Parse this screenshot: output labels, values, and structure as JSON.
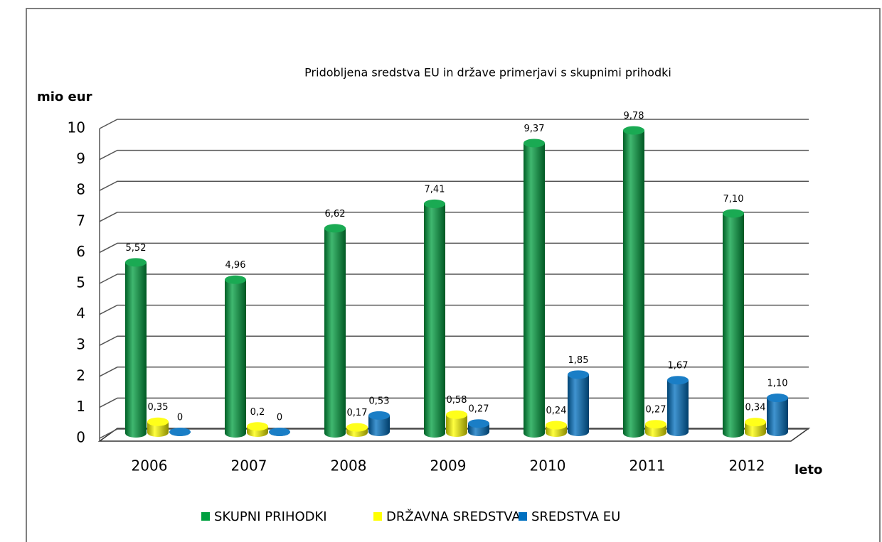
{
  "chart_data": {
    "type": "bar3d",
    "title": "Pridobljena sredstva EU in države  primerjavi s skupnimi prihodki",
    "y_label": "mio eur",
    "x_label": "leto",
    "categories": [
      "2006",
      "2007",
      "2008",
      "2009",
      "2010",
      "2011",
      "2012"
    ],
    "series": [
      {
        "name": "SKUPNI PRIHODKI",
        "color": "#00a040",
        "values": [
          5.52,
          4.96,
          6.62,
          7.41,
          9.37,
          9.78,
          7.1
        ],
        "value_labels": [
          "5,52",
          "4,96",
          "6,62",
          "7,41",
          "9,37",
          "9,78",
          "7,10"
        ]
      },
      {
        "name": "DRŽAVNA SREDSTVA",
        "color": "#ffff00",
        "values": [
          0.35,
          0.2,
          0.17,
          0.58,
          0.24,
          0.27,
          0.34
        ],
        "value_labels": [
          "0,35",
          "0,2",
          "0,17",
          "0,58",
          "0,24",
          "0,27",
          "0,34"
        ]
      },
      {
        "name": "SREDSTVA EU",
        "color": "#0070c0",
        "values": [
          0,
          0,
          0.53,
          0.27,
          1.85,
          1.67,
          1.1
        ],
        "value_labels": [
          "0",
          "0",
          "0,53",
          "0,27",
          "1,85",
          "1,67",
          "1,10"
        ]
      }
    ],
    "ylim": [
      0,
      10
    ],
    "yticks": [
      0,
      1,
      2,
      3,
      4,
      5,
      6,
      7,
      8,
      9,
      10
    ],
    "grid": true,
    "legend": "bottom"
  }
}
